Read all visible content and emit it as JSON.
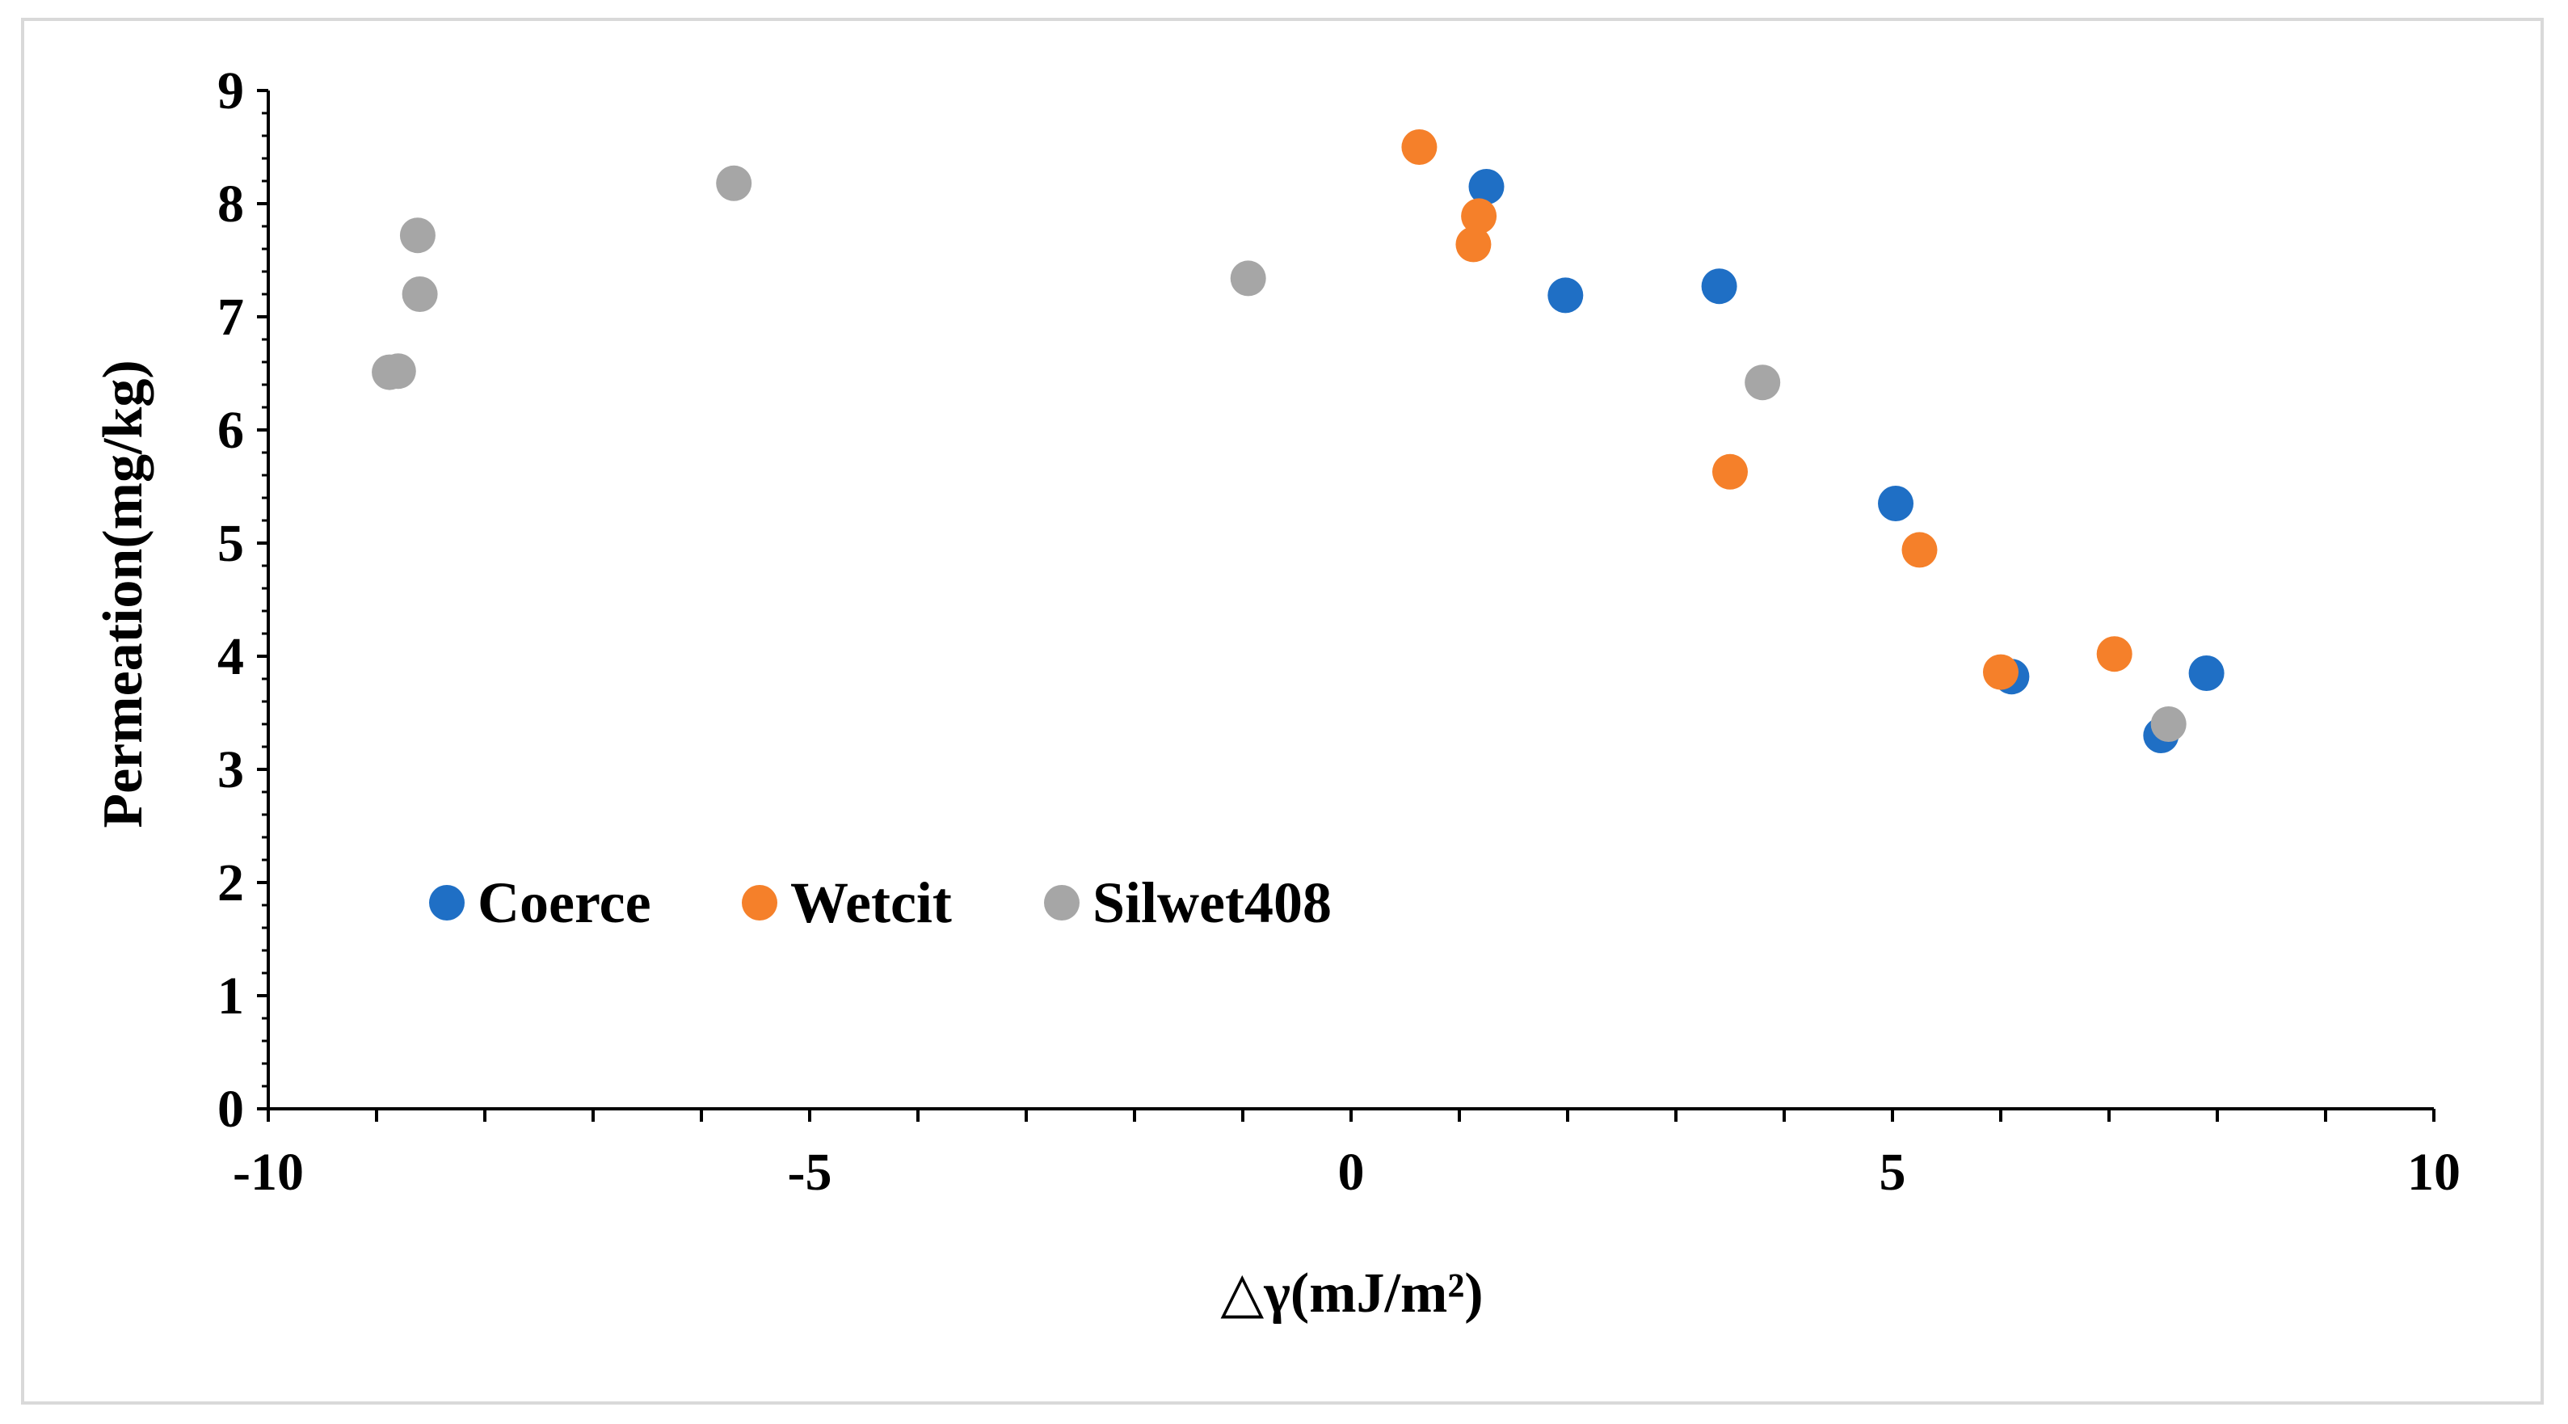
{
  "chart_data": {
    "type": "scatter",
    "title": "",
    "xlabel": "△γ(mJ/m²)",
    "ylabel": "Permeation(mg/kg)",
    "xlim": [
      -10,
      10
    ],
    "ylim": [
      0,
      9
    ],
    "x_ticks": [
      -10,
      -5,
      0,
      5,
      10
    ],
    "x_tick_labels": [
      "-10",
      "-5",
      "0",
      "5",
      "10"
    ],
    "y_ticks": [
      0,
      1,
      2,
      3,
      4,
      5,
      6,
      7,
      8,
      9
    ],
    "y_tick_labels": [
      "0",
      "1",
      "2",
      "3",
      "4",
      "5",
      "6",
      "7",
      "8",
      "9"
    ],
    "grid": false,
    "legend_position": "lower-left",
    "series": [
      {
        "name": "Coerce",
        "color": "#1f6fc5",
        "points": [
          {
            "x": 1.25,
            "y": 8.15
          },
          {
            "x": 1.98,
            "y": 7.19
          },
          {
            "x": 3.4,
            "y": 7.27
          },
          {
            "x": 5.03,
            "y": 5.35
          },
          {
            "x": 6.1,
            "y": 3.82
          },
          {
            "x": 7.48,
            "y": 3.3
          },
          {
            "x": 7.9,
            "y": 3.85
          }
        ]
      },
      {
        "name": "Wetcit",
        "color": "#f5802a",
        "points": [
          {
            "x": 0.63,
            "y": 8.5
          },
          {
            "x": 1.18,
            "y": 7.89
          },
          {
            "x": 1.13,
            "y": 7.64
          },
          {
            "x": 3.5,
            "y": 5.63
          },
          {
            "x": 5.25,
            "y": 4.94
          },
          {
            "x": 6.0,
            "y": 3.86
          },
          {
            "x": 7.05,
            "y": 4.02
          }
        ]
      },
      {
        "name": "Silwet408",
        "color": "#a6a6a6",
        "points": [
          {
            "x": -8.62,
            "y": 7.72
          },
          {
            "x": -8.6,
            "y": 7.2
          },
          {
            "x": -8.88,
            "y": 6.51
          },
          {
            "x": -8.8,
            "y": 6.52
          },
          {
            "x": -5.7,
            "y": 8.18
          },
          {
            "x": -0.95,
            "y": 7.34
          },
          {
            "x": 3.8,
            "y": 6.42
          },
          {
            "x": 7.55,
            "y": 3.4
          }
        ]
      }
    ]
  }
}
